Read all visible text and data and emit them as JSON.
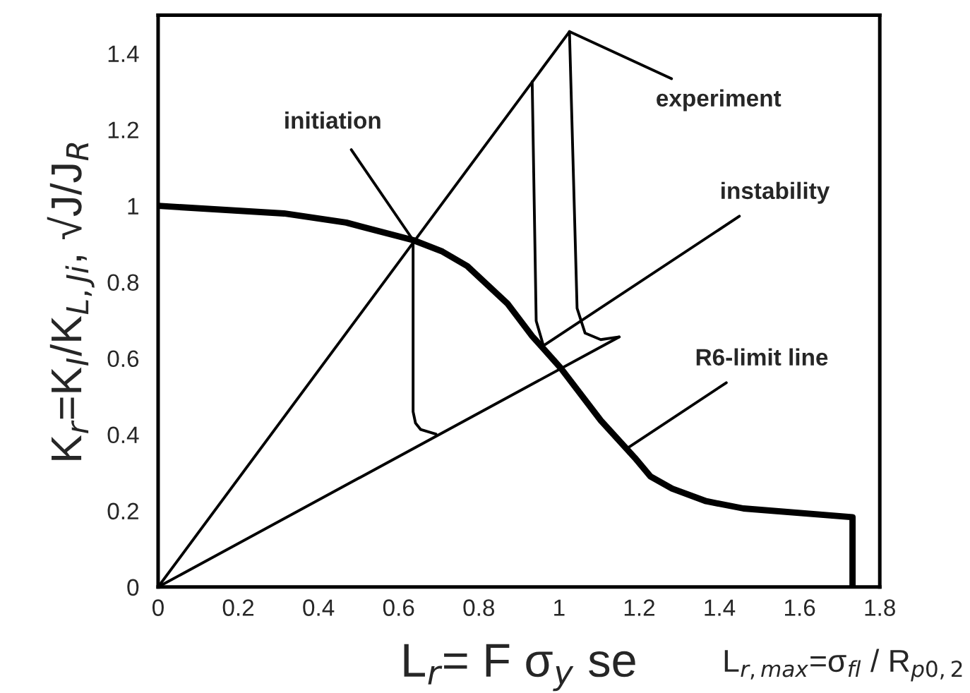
{
  "chart_data": {
    "type": "line",
    "xlabel": "L$_{r}$= F σ$_{y}$ se",
    "ylabel": "K$_{r}$=K$_{I}$/K$_{L,Ji}$, √J/J$_{R}$",
    "xlim": [
      0,
      1.8
    ],
    "ylim": [
      0,
      1.5
    ],
    "xticks": [
      0,
      0.2,
      0.4,
      0.6,
      0.8,
      1,
      1.2,
      1.4,
      1.6,
      1.8
    ],
    "yticks": [
      0,
      0.2,
      0.4,
      0.6,
      0.8,
      1,
      1.2,
      1.4
    ],
    "grid": false,
    "legend": false,
    "marker": "none",
    "line_style": "solid",
    "series": [
      {
        "color": "#000000",
        "x": [
          0,
          0.314,
          0.469,
          0.636,
          0.709,
          0.771,
          0.871,
          0.933,
          1.003,
          1.104,
          1.189,
          1.228,
          1.282,
          1.367,
          1.46,
          1.732,
          1.732
        ],
        "values": [
          1.0,
          0.98,
          0.956,
          0.91,
          0.88,
          0.842,
          0.744,
          0.658,
          0.576,
          0.437,
          0.339,
          0.29,
          0.258,
          0.225,
          0.206,
          0.183,
          0
        ]
      },
      {
        "color": "#000000",
        "x": [
          0,
          1.026
        ],
        "values": [
          0,
          1.457
        ]
      },
      {
        "color": "#000000",
        "x": [
          0,
          1.15
        ],
        "values": [
          0,
          0.656
        ]
      },
      {
        "color": "#000000",
        "x": [
          0.636,
          0.636,
          0.642,
          0.655,
          0.693
        ],
        "values": [
          0.91,
          0.46,
          0.43,
          0.413,
          0.401
        ]
      },
      {
        "color": "#000000",
        "x": [
          0.933,
          0.943,
          0.961
        ],
        "values": [
          1.326,
          0.698,
          0.633
        ]
      },
      {
        "color": "#000000",
        "x": [
          1.026,
          1.045,
          1.065,
          1.104,
          1.15
        ],
        "values": [
          1.457,
          0.731,
          0.666,
          0.649,
          0.656
        ]
      }
    ],
    "annotations": [
      {
        "text": "initiation",
        "x": 0.636,
        "y": 0.91
      },
      {
        "text": "experiment",
        "x": 1.026,
        "y": 1.457
      },
      {
        "text": "instability",
        "x": 0.961,
        "y": 0.633
      },
      {
        "text": "R6-limit line",
        "x": 1.173,
        "y": 0.366
      },
      "L$_{r,max}$=σ$_{fl}$ / R$_{p0,2}$"
    ]
  }
}
